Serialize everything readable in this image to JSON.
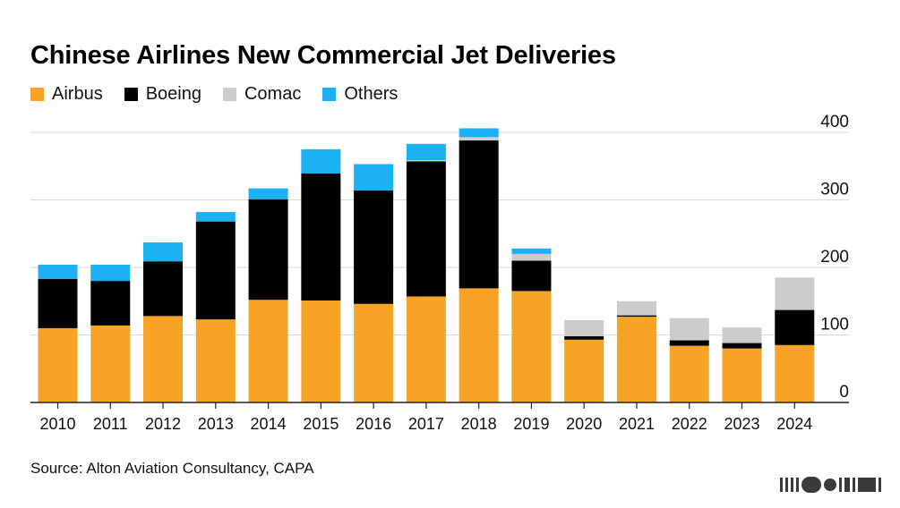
{
  "title": "Chinese Airlines New Commercial Jet Deliveries",
  "source": "Source: Alton Aviation Consultancy, CAPA",
  "colors": {
    "airbus": "#f8a326",
    "boeing": "#000000",
    "comac": "#cccccc",
    "others": "#1bb1f2",
    "grid": "#d9d9d9",
    "axis": "#222222"
  },
  "legend": [
    {
      "label": "Airbus",
      "color": "#f8a326"
    },
    {
      "label": "Boeing",
      "color": "#000000"
    },
    {
      "label": "Comac",
      "color": "#cccccc"
    },
    {
      "label": "Others",
      "color": "#1bb1f2"
    }
  ],
  "chart_data": {
    "type": "bar",
    "stacked": true,
    "categories": [
      "2010",
      "2011",
      "2012",
      "2013",
      "2014",
      "2015",
      "2016",
      "2017",
      "2018",
      "2019",
      "2020",
      "2021",
      "2022",
      "2023",
      "2024"
    ],
    "series": [
      {
        "name": "Airbus",
        "values": [
          110,
          114,
          128,
          123,
          152,
          151,
          146,
          157,
          169,
          165,
          93,
          127,
          84,
          80,
          85
        ]
      },
      {
        "name": "Boeing",
        "values": [
          73,
          66,
          81,
          145,
          149,
          188,
          168,
          200,
          219,
          45,
          5,
          2,
          8,
          8,
          52
        ]
      },
      {
        "name": "Comac",
        "values": [
          0,
          0,
          0,
          0,
          0,
          0,
          0,
          2,
          5,
          10,
          24,
          21,
          33,
          23,
          48
        ]
      },
      {
        "name": "Others",
        "values": [
          21,
          24,
          28,
          14,
          16,
          36,
          39,
          24,
          13,
          8,
          0,
          0,
          0,
          0,
          0
        ]
      }
    ],
    "ylim": [
      0,
      400
    ],
    "yticks": [
      0,
      100,
      200,
      300,
      400
    ],
    "y_axis_position": "right",
    "grid": true,
    "legend_position": "top-left"
  }
}
